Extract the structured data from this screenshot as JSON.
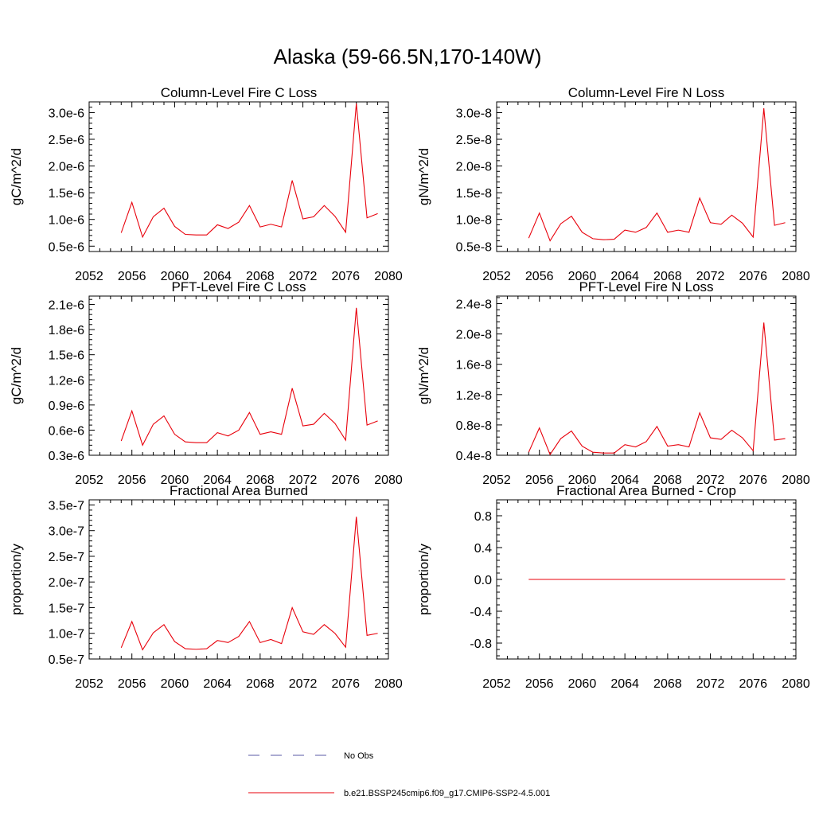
{
  "page_title": "Alaska (59-66.5N,170-140W)",
  "legend": {
    "entries": [
      {
        "label": "No Obs",
        "style": "dashed",
        "color": "#5a5aa6"
      },
      {
        "label": "b.e21.BSSP245cmip6.f09_g17.CMIP6-SSP2-4.5.001",
        "style": "solid",
        "color": "#e8000b"
      }
    ]
  },
  "chart_data": [
    {
      "type": "line",
      "title": "Column-Level Fire C Loss",
      "ylabel": "gC/m^2/d",
      "xlim": [
        2052,
        2080
      ],
      "ylim": [
        4e-07,
        3.2e-06
      ],
      "x_ticks": [
        2052,
        2056,
        2060,
        2064,
        2068,
        2072,
        2076,
        2080
      ],
      "y_ticks": [
        {
          "value": 5e-07,
          "label": "0.5e-6"
        },
        {
          "value": 1e-06,
          "label": "1.0e-6"
        },
        {
          "value": 1.5e-06,
          "label": "1.5e-6"
        },
        {
          "value": 2e-06,
          "label": "2.0e-6"
        },
        {
          "value": 2.5e-06,
          "label": "2.5e-6"
        },
        {
          "value": 3e-06,
          "label": "3.0e-6"
        }
      ],
      "x": [
        2055,
        2056,
        2057,
        2058,
        2059,
        2060,
        2061,
        2062,
        2063,
        2064,
        2065,
        2066,
        2067,
        2068,
        2069,
        2070,
        2071,
        2072,
        2073,
        2074,
        2075,
        2076,
        2077,
        2078,
        2079
      ],
      "series": [
        {
          "color": "#e8000b",
          "values": [
            7.5e-07,
            1.32e-06,
            6.7e-07,
            1.05e-06,
            1.21e-06,
            8.7e-07,
            7.2e-07,
            7.1e-07,
            7.1e-07,
            9e-07,
            8.3e-07,
            9.5e-07,
            1.26e-06,
            8.6e-07,
            9.1e-07,
            8.6e-07,
            1.73e-06,
            1.01e-06,
            1.05e-06,
            1.26e-06,
            1.06e-06,
            7.6e-07,
            3.17e-06,
            1.03e-06,
            1.11e-06
          ]
        }
      ]
    },
    {
      "type": "line",
      "title": "Column-Level Fire N Loss",
      "ylabel": "gN/m^2/d",
      "xlim": [
        2052,
        2080
      ],
      "ylim": [
        4e-09,
        3.2e-08
      ],
      "x_ticks": [
        2052,
        2056,
        2060,
        2064,
        2068,
        2072,
        2076,
        2080
      ],
      "y_ticks": [
        {
          "value": 5e-09,
          "label": "0.5e-8"
        },
        {
          "value": 1e-08,
          "label": "1.0e-8"
        },
        {
          "value": 1.5e-08,
          "label": "1.5e-8"
        },
        {
          "value": 2e-08,
          "label": "2.0e-8"
        },
        {
          "value": 2.5e-08,
          "label": "2.5e-8"
        },
        {
          "value": 3e-08,
          "label": "3.0e-8"
        }
      ],
      "x": [
        2055,
        2056,
        2057,
        2058,
        2059,
        2060,
        2061,
        2062,
        2063,
        2064,
        2065,
        2066,
        2067,
        2068,
        2069,
        2070,
        2071,
        2072,
        2073,
        2074,
        2075,
        2076,
        2077,
        2078,
        2079
      ],
      "series": [
        {
          "color": "#e8000b",
          "values": [
            6.5e-09,
            1.12e-08,
            6e-09,
            9.2e-09,
            1.06e-08,
            7.6e-09,
            6.4e-09,
            6.2e-09,
            6.3e-09,
            8e-09,
            7.6e-09,
            8.5e-09,
            1.12e-08,
            7.6e-09,
            8e-09,
            7.6e-09,
            1.4e-08,
            9.4e-09,
            9.1e-09,
            1.08e-08,
            9.3e-09,
            6.7e-09,
            3.08e-08,
            8.9e-09,
            9.4e-09
          ]
        }
      ]
    },
    {
      "type": "line",
      "title": "PFT-Level Fire C Loss",
      "ylabel": "gC/m^2/d",
      "xlim": [
        2052,
        2080
      ],
      "ylim": [
        3e-07,
        2.2e-06
      ],
      "x_ticks": [
        2052,
        2056,
        2060,
        2064,
        2068,
        2072,
        2076,
        2080
      ],
      "y_ticks": [
        {
          "value": 3e-07,
          "label": "0.3e-6"
        },
        {
          "value": 6e-07,
          "label": "0.6e-6"
        },
        {
          "value": 9e-07,
          "label": "0.9e-6"
        },
        {
          "value": 1.2e-06,
          "label": "1.2e-6"
        },
        {
          "value": 1.5e-06,
          "label": "1.5e-6"
        },
        {
          "value": 1.8e-06,
          "label": "1.8e-6"
        },
        {
          "value": 2.1e-06,
          "label": "2.1e-6"
        }
      ],
      "x": [
        2055,
        2056,
        2057,
        2058,
        2059,
        2060,
        2061,
        2062,
        2063,
        2064,
        2065,
        2066,
        2067,
        2068,
        2069,
        2070,
        2071,
        2072,
        2073,
        2074,
        2075,
        2076,
        2077,
        2078,
        2079
      ],
      "series": [
        {
          "color": "#e8000b",
          "values": [
            4.7e-07,
            8.3e-07,
            4.2e-07,
            6.7e-07,
            7.7e-07,
            5.5e-07,
            4.6e-07,
            4.5e-07,
            4.5e-07,
            5.7e-07,
            5.3e-07,
            6e-07,
            8.1e-07,
            5.5e-07,
            5.8e-07,
            5.5e-07,
            1.1e-06,
            6.5e-07,
            6.7e-07,
            8e-07,
            6.8e-07,
            4.8e-07,
            2.06e-06,
            6.6e-07,
            7.1e-07
          ]
        }
      ]
    },
    {
      "type": "line",
      "title": "PFT-Level Fire N Loss",
      "ylabel": "gN/m^2/d",
      "xlim": [
        2052,
        2080
      ],
      "ylim": [
        4e-09,
        2.5e-08
      ],
      "x_ticks": [
        2052,
        2056,
        2060,
        2064,
        2068,
        2072,
        2076,
        2080
      ],
      "y_ticks": [
        {
          "value": 4e-09,
          "label": "0.4e-8"
        },
        {
          "value": 8e-09,
          "label": "0.8e-8"
        },
        {
          "value": 1.2e-08,
          "label": "1.2e-8"
        },
        {
          "value": 1.6e-08,
          "label": "1.6e-8"
        },
        {
          "value": 2e-08,
          "label": "2.0e-8"
        },
        {
          "value": 2.4e-08,
          "label": "2.4e-8"
        }
      ],
      "x": [
        2055,
        2056,
        2057,
        2058,
        2059,
        2060,
        2061,
        2062,
        2063,
        2064,
        2065,
        2066,
        2067,
        2068,
        2069,
        2070,
        2071,
        2072,
        2073,
        2074,
        2075,
        2076,
        2077,
        2078,
        2079
      ],
      "series": [
        {
          "color": "#e8000b",
          "values": [
            4.4e-09,
            7.6e-09,
            4.1e-09,
            6.2e-09,
            7.2e-09,
            5.2e-09,
            4.4e-09,
            4.3e-09,
            4.3e-09,
            5.4e-09,
            5.1e-09,
            5.8e-09,
            7.8e-09,
            5.2e-09,
            5.4e-09,
            5.1e-09,
            9.6e-09,
            6.3e-09,
            6.1e-09,
            7.3e-09,
            6.3e-09,
            4.6e-09,
            2.15e-08,
            6e-09,
            6.2e-09
          ]
        }
      ]
    },
    {
      "type": "line",
      "title": "Fractional Area Burned",
      "ylabel": "proportion/y",
      "xlim": [
        2052,
        2080
      ],
      "ylim": [
        5e-08,
        3.6e-07
      ],
      "x_ticks": [
        2052,
        2056,
        2060,
        2064,
        2068,
        2072,
        2076,
        2080
      ],
      "y_ticks": [
        {
          "value": 5e-08,
          "label": "0.5e-7"
        },
        {
          "value": 1e-07,
          "label": "1.0e-7"
        },
        {
          "value": 1.5e-07,
          "label": "1.5e-7"
        },
        {
          "value": 2e-07,
          "label": "2.0e-7"
        },
        {
          "value": 2.5e-07,
          "label": "2.5e-7"
        },
        {
          "value": 3e-07,
          "label": "3.0e-7"
        },
        {
          "value": 3.5e-07,
          "label": "3.5e-7"
        }
      ],
      "x": [
        2055,
        2056,
        2057,
        2058,
        2059,
        2060,
        2061,
        2062,
        2063,
        2064,
        2065,
        2066,
        2067,
        2068,
        2069,
        2070,
        2071,
        2072,
        2073,
        2074,
        2075,
        2076,
        2077,
        2078,
        2079
      ],
      "series": [
        {
          "color": "#e8000b",
          "values": [
            7.2e-08,
            1.23e-07,
            6.8e-08,
            1.01e-07,
            1.17e-07,
            8.4e-08,
            7e-08,
            6.9e-08,
            7e-08,
            8.6e-08,
            8.2e-08,
            9.4e-08,
            1.23e-07,
            8.2e-08,
            8.8e-08,
            8e-08,
            1.5e-07,
            1.03e-07,
            9.8e-08,
            1.17e-07,
            1e-07,
            7.3e-08,
            3.27e-07,
            9.6e-08,
            1e-07
          ]
        }
      ]
    },
    {
      "type": "line",
      "title": "Fractional Area Burned - Crop",
      "ylabel": "proportion/y",
      "xlim": [
        2052,
        2080
      ],
      "ylim": [
        -1.0,
        1.0
      ],
      "x_ticks": [
        2052,
        2056,
        2060,
        2064,
        2068,
        2072,
        2076,
        2080
      ],
      "y_ticks": [
        {
          "value": -0.8,
          "label": "-0.8"
        },
        {
          "value": -0.4,
          "label": "-0.4"
        },
        {
          "value": 0.0,
          "label": "0.0"
        },
        {
          "value": 0.4,
          "label": "0.4"
        },
        {
          "value": 0.8,
          "label": "0.8"
        }
      ],
      "x": [
        2055,
        2056,
        2057,
        2058,
        2059,
        2060,
        2061,
        2062,
        2063,
        2064,
        2065,
        2066,
        2067,
        2068,
        2069,
        2070,
        2071,
        2072,
        2073,
        2074,
        2075,
        2076,
        2077,
        2078,
        2079
      ],
      "series": [
        {
          "color": "#e8000b",
          "values": [
            0,
            0,
            0,
            0,
            0,
            0,
            0,
            0,
            0,
            0,
            0,
            0,
            0,
            0,
            0,
            0,
            0,
            0,
            0,
            0,
            0,
            0,
            0,
            0,
            0
          ]
        }
      ]
    }
  ]
}
